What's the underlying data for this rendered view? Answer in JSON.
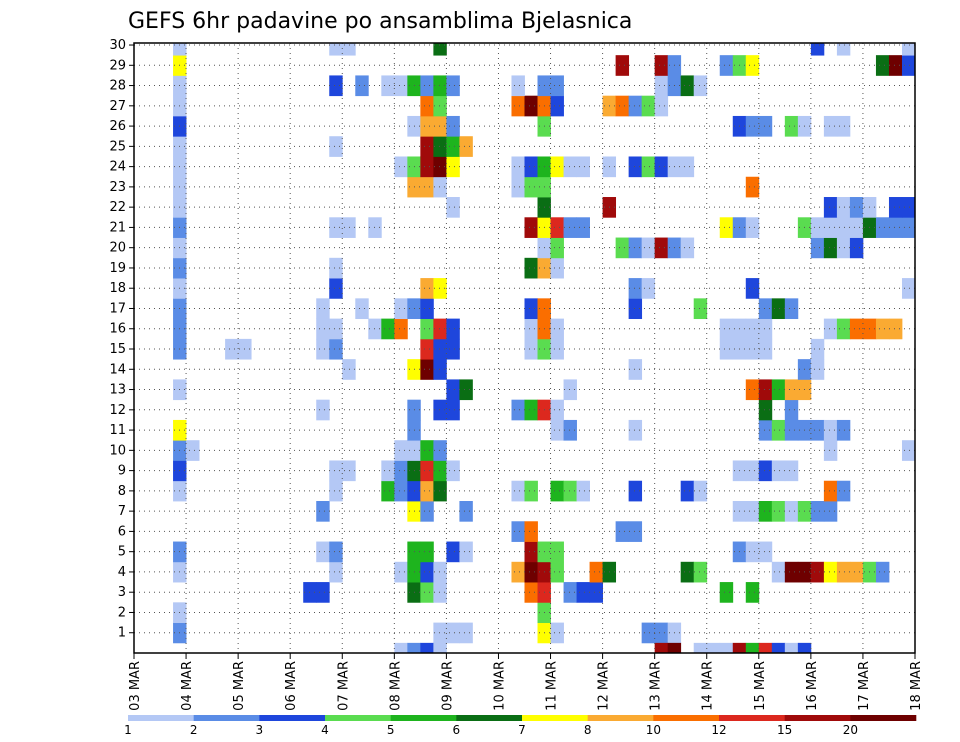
{
  "chart_data": {
    "type": "heatmap",
    "title": "GEFS 6hr padavine po ansamblima Bjelasnica",
    "x_tick_labels": [
      "03 MAR",
      "04 MAR",
      "05 MAR",
      "06 MAR",
      "07 MAR",
      "08 MAR",
      "09 MAR",
      "10 MAR",
      "11 MAR",
      "12 MAR",
      "13 MAR",
      "14 MAR",
      "15 MAR",
      "16 MAR",
      "17 MAR",
      "18 MAR"
    ],
    "y_tick_labels": [
      "1",
      "2",
      "3",
      "4",
      "5",
      "6",
      "7",
      "8",
      "9",
      "10",
      "11",
      "12",
      "13",
      "14",
      "15",
      "16",
      "17",
      "18",
      "19",
      "20",
      "21",
      "22",
      "23",
      "24",
      "25",
      "26",
      "27",
      "28",
      "29",
      "30"
    ],
    "y_range": [
      0,
      30
    ],
    "time_steps": 60,
    "grid": true,
    "colorbar": {
      "labels": [
        "1",
        "2",
        "3",
        "4",
        "5",
        "6",
        "7",
        "8",
        "10",
        "12",
        "15",
        "20"
      ],
      "colors": [
        "#b4c8f5",
        "#5a8ce6",
        "#1e46dc",
        "#5adc50",
        "#1eb41e",
        "#0a6e14",
        "#ffff00",
        "#faaa32",
        "#fa6e00",
        "#dc281e",
        "#a00a0a",
        "#6e0000"
      ]
    },
    "cells": [
      [
        1,
        3,
        2
      ],
      [
        1,
        23,
        1
      ],
      [
        1,
        24,
        1
      ],
      [
        1,
        25,
        1
      ],
      [
        1,
        31,
        7
      ],
      [
        1,
        32,
        1
      ],
      [
        1,
        39,
        2
      ],
      [
        1,
        40,
        2
      ],
      [
        1,
        41,
        1
      ],
      [
        2,
        3,
        1
      ],
      [
        2,
        31,
        4
      ],
      [
        3,
        13,
        3
      ],
      [
        3,
        14,
        3
      ],
      [
        3,
        21,
        6
      ],
      [
        3,
        22,
        4
      ],
      [
        3,
        23,
        1
      ],
      [
        3,
        30,
        9
      ],
      [
        3,
        31,
        10
      ],
      [
        3,
        33,
        2
      ],
      [
        3,
        34,
        3
      ],
      [
        3,
        35,
        3
      ],
      [
        3,
        45,
        5
      ],
      [
        3,
        47,
        5
      ],
      [
        4,
        3,
        1
      ],
      [
        4,
        15,
        1
      ],
      [
        4,
        20,
        1
      ],
      [
        4,
        21,
        5
      ],
      [
        4,
        22,
        3
      ],
      [
        4,
        23,
        1
      ],
      [
        4,
        29,
        8
      ],
      [
        4,
        30,
        12
      ],
      [
        4,
        31,
        11
      ],
      [
        4,
        32,
        4
      ],
      [
        4,
        35,
        9
      ],
      [
        4,
        36,
        6
      ],
      [
        4,
        42,
        6
      ],
      [
        4,
        43,
        4
      ],
      [
        4,
        49,
        1
      ],
      [
        4,
        50,
        12
      ],
      [
        4,
        51,
        12
      ],
      [
        4,
        52,
        11
      ],
      [
        4,
        53,
        7
      ],
      [
        4,
        54,
        8
      ],
      [
        4,
        55,
        8
      ],
      [
        4,
        56,
        4
      ],
      [
        4,
        57,
        2
      ],
      [
        5,
        3,
        2
      ],
      [
        5,
        14,
        1
      ],
      [
        5,
        15,
        2
      ],
      [
        5,
        21,
        5
      ],
      [
        5,
        22,
        5
      ],
      [
        5,
        24,
        3
      ],
      [
        5,
        25,
        1
      ],
      [
        5,
        30,
        11
      ],
      [
        5,
        31,
        4
      ],
      [
        5,
        32,
        4
      ],
      [
        5,
        46,
        2
      ],
      [
        5,
        47,
        1
      ],
      [
        5,
        48,
        1
      ],
      [
        6,
        29,
        2
      ],
      [
        6,
        30,
        9
      ],
      [
        6,
        37,
        2
      ],
      [
        6,
        38,
        2
      ],
      [
        7,
        14,
        2
      ],
      [
        7,
        21,
        7
      ],
      [
        7,
        22,
        2
      ],
      [
        7,
        25,
        2
      ],
      [
        7,
        46,
        1
      ],
      [
        7,
        47,
        1
      ],
      [
        7,
        48,
        5
      ],
      [
        7,
        49,
        4
      ],
      [
        7,
        50,
        1
      ],
      [
        7,
        51,
        4
      ],
      [
        7,
        52,
        2
      ],
      [
        7,
        53,
        2
      ],
      [
        8,
        3,
        1
      ],
      [
        8,
        15,
        1
      ],
      [
        8,
        19,
        5
      ],
      [
        8,
        20,
        2
      ],
      [
        8,
        21,
        3
      ],
      [
        8,
        22,
        8
      ],
      [
        8,
        23,
        6
      ],
      [
        8,
        29,
        1
      ],
      [
        8,
        30,
        4
      ],
      [
        8,
        32,
        5
      ],
      [
        8,
        33,
        4
      ],
      [
        8,
        34,
        1
      ],
      [
        8,
        38,
        3
      ],
      [
        8,
        42,
        3
      ],
      [
        8,
        43,
        1
      ],
      [
        8,
        53,
        9
      ],
      [
        8,
        54,
        2
      ],
      [
        9,
        3,
        3
      ],
      [
        9,
        15,
        1
      ],
      [
        9,
        16,
        1
      ],
      [
        9,
        19,
        1
      ],
      [
        9,
        20,
        2
      ],
      [
        9,
        21,
        6
      ],
      [
        9,
        22,
        10
      ],
      [
        9,
        23,
        5
      ],
      [
        9,
        24,
        1
      ],
      [
        9,
        46,
        1
      ],
      [
        9,
        47,
        1
      ],
      [
        9,
        48,
        3
      ],
      [
        9,
        49,
        1
      ],
      [
        9,
        50,
        1
      ],
      [
        10,
        3,
        2
      ],
      [
        10,
        4,
        1
      ],
      [
        10,
        20,
        1
      ],
      [
        10,
        21,
        1
      ],
      [
        10,
        22,
        5
      ],
      [
        10,
        23,
        2
      ],
      [
        10,
        53,
        1
      ],
      [
        10,
        59,
        1
      ],
      [
        11,
        3,
        7
      ],
      [
        11,
        21,
        2
      ],
      [
        11,
        32,
        1
      ],
      [
        11,
        33,
        2
      ],
      [
        11,
        38,
        1
      ],
      [
        11,
        48,
        2
      ],
      [
        11,
        49,
        4
      ],
      [
        11,
        50,
        2
      ],
      [
        11,
        51,
        2
      ],
      [
        11,
        52,
        2
      ],
      [
        11,
        53,
        1
      ],
      [
        11,
        54,
        2
      ],
      [
        12,
        14,
        1
      ],
      [
        12,
        21,
        2
      ],
      [
        12,
        23,
        3
      ],
      [
        12,
        24,
        3
      ],
      [
        12,
        29,
        2
      ],
      [
        12,
        30,
        5
      ],
      [
        12,
        31,
        10
      ],
      [
        12,
        32,
        1
      ],
      [
        12,
        48,
        6
      ],
      [
        12,
        50,
        2
      ],
      [
        13,
        3,
        1
      ],
      [
        13,
        24,
        3
      ],
      [
        13,
        25,
        6
      ],
      [
        13,
        33,
        1
      ],
      [
        13,
        47,
        9
      ],
      [
        13,
        48,
        11
      ],
      [
        13,
        49,
        5
      ],
      [
        13,
        50,
        8
      ],
      [
        13,
        51,
        8
      ],
      [
        14,
        16,
        1
      ],
      [
        14,
        21,
        7
      ],
      [
        14,
        22,
        12
      ],
      [
        14,
        23,
        3
      ],
      [
        14,
        38,
        1
      ],
      [
        14,
        51,
        2
      ],
      [
        14,
        52,
        1
      ],
      [
        15,
        3,
        2
      ],
      [
        15,
        7,
        1
      ],
      [
        15,
        8,
        1
      ],
      [
        15,
        14,
        1
      ],
      [
        15,
        15,
        2
      ],
      [
        15,
        22,
        10
      ],
      [
        15,
        23,
        3
      ],
      [
        15,
        24,
        3
      ],
      [
        15,
        30,
        1
      ],
      [
        15,
        31,
        4
      ],
      [
        15,
        32,
        1
      ],
      [
        15,
        45,
        1
      ],
      [
        15,
        46,
        1
      ],
      [
        15,
        47,
        1
      ],
      [
        15,
        48,
        1
      ],
      [
        15,
        52,
        1
      ],
      [
        16,
        3,
        2
      ],
      [
        16,
        14,
        1
      ],
      [
        16,
        15,
        1
      ],
      [
        16,
        18,
        1
      ],
      [
        16,
        19,
        5
      ],
      [
        16,
        20,
        9
      ],
      [
        16,
        22,
        4
      ],
      [
        16,
        23,
        10
      ],
      [
        16,
        24,
        3
      ],
      [
        16,
        30,
        1
      ],
      [
        16,
        31,
        9
      ],
      [
        16,
        32,
        1
      ],
      [
        16,
        45,
        1
      ],
      [
        16,
        46,
        1
      ],
      [
        16,
        47,
        1
      ],
      [
        16,
        48,
        1
      ],
      [
        16,
        53,
        1
      ],
      [
        16,
        54,
        4
      ],
      [
        16,
        55,
        9
      ],
      [
        16,
        56,
        9
      ],
      [
        16,
        57,
        8
      ],
      [
        16,
        58,
        8
      ],
      [
        17,
        3,
        2
      ],
      [
        17,
        14,
        1
      ],
      [
        17,
        17,
        1
      ],
      [
        17,
        20,
        1
      ],
      [
        17,
        21,
        2
      ],
      [
        17,
        22,
        3
      ],
      [
        17,
        30,
        3
      ],
      [
        17,
        31,
        9
      ],
      [
        17,
        38,
        3
      ],
      [
        17,
        43,
        4
      ],
      [
        17,
        48,
        2
      ],
      [
        17,
        49,
        6
      ],
      [
        17,
        50,
        2
      ],
      [
        18,
        3,
        1
      ],
      [
        18,
        15,
        3
      ],
      [
        18,
        22,
        8
      ],
      [
        18,
        23,
        7
      ],
      [
        18,
        38,
        2
      ],
      [
        18,
        39,
        1
      ],
      [
        18,
        47,
        3
      ],
      [
        18,
        59,
        1
      ],
      [
        19,
        3,
        2
      ],
      [
        19,
        15,
        1
      ],
      [
        19,
        30,
        6
      ],
      [
        19,
        31,
        8
      ],
      [
        19,
        32,
        1
      ],
      [
        20,
        3,
        1
      ],
      [
        20,
        31,
        1
      ],
      [
        20,
        32,
        4
      ],
      [
        20,
        37,
        4
      ],
      [
        20,
        38,
        2
      ],
      [
        20,
        39,
        1
      ],
      [
        20,
        40,
        11
      ],
      [
        20,
        41,
        2
      ],
      [
        20,
        42,
        1
      ],
      [
        20,
        52,
        2
      ],
      [
        20,
        53,
        6
      ],
      [
        20,
        54,
        1
      ],
      [
        20,
        55,
        3
      ],
      [
        21,
        3,
        2
      ],
      [
        21,
        15,
        1
      ],
      [
        21,
        16,
        1
      ],
      [
        21,
        18,
        1
      ],
      [
        21,
        30,
        11
      ],
      [
        21,
        31,
        7
      ],
      [
        21,
        32,
        10
      ],
      [
        21,
        33,
        2
      ],
      [
        21,
        34,
        2
      ],
      [
        21,
        45,
        7
      ],
      [
        21,
        46,
        2
      ],
      [
        21,
        47,
        1
      ],
      [
        21,
        51,
        4
      ],
      [
        21,
        52,
        1
      ],
      [
        21,
        53,
        1
      ],
      [
        21,
        54,
        1
      ],
      [
        21,
        55,
        1
      ],
      [
        21,
        56,
        6
      ],
      [
        21,
        57,
        2
      ],
      [
        21,
        58,
        2
      ],
      [
        21,
        59,
        2
      ],
      [
        22,
        3,
        1
      ],
      [
        22,
        24,
        1
      ],
      [
        22,
        31,
        6
      ],
      [
        22,
        36,
        11
      ],
      [
        22,
        53,
        3
      ],
      [
        22,
        54,
        1
      ],
      [
        22,
        55,
        2
      ],
      [
        22,
        56,
        1
      ],
      [
        22,
        58,
        3
      ],
      [
        22,
        59,
        3
      ],
      [
        23,
        3,
        1
      ],
      [
        23,
        21,
        8
      ],
      [
        23,
        22,
        8
      ],
      [
        23,
        23,
        1
      ],
      [
        23,
        29,
        1
      ],
      [
        23,
        30,
        4
      ],
      [
        23,
        31,
        4
      ],
      [
        23,
        47,
        9
      ],
      [
        24,
        3,
        1
      ],
      [
        24,
        20,
        1
      ],
      [
        24,
        21,
        4
      ],
      [
        24,
        22,
        11
      ],
      [
        24,
        23,
        12
      ],
      [
        24,
        24,
        7
      ],
      [
        24,
        29,
        1
      ],
      [
        24,
        30,
        3
      ],
      [
        24,
        31,
        5
      ],
      [
        24,
        32,
        7
      ],
      [
        24,
        33,
        1
      ],
      [
        24,
        34,
        1
      ],
      [
        24,
        36,
        1
      ],
      [
        24,
        38,
        3
      ],
      [
        24,
        39,
        4
      ],
      [
        24,
        40,
        3
      ],
      [
        24,
        41,
        1
      ],
      [
        24,
        42,
        1
      ],
      [
        25,
        3,
        1
      ],
      [
        25,
        15,
        1
      ],
      [
        25,
        22,
        11
      ],
      [
        25,
        23,
        6
      ],
      [
        25,
        24,
        5
      ],
      [
        25,
        25,
        8
      ],
      [
        26,
        3,
        3
      ],
      [
        26,
        21,
        1
      ],
      [
        26,
        22,
        8
      ],
      [
        26,
        23,
        8
      ],
      [
        26,
        24,
        2
      ],
      [
        26,
        31,
        4
      ],
      [
        26,
        46,
        3
      ],
      [
        26,
        47,
        2
      ],
      [
        26,
        48,
        2
      ],
      [
        26,
        50,
        4
      ],
      [
        26,
        51,
        1
      ],
      [
        26,
        53,
        1
      ],
      [
        26,
        54,
        1
      ],
      [
        27,
        3,
        1
      ],
      [
        27,
        22,
        9
      ],
      [
        27,
        23,
        4
      ],
      [
        27,
        29,
        9
      ],
      [
        27,
        30,
        12
      ],
      [
        27,
        31,
        9
      ],
      [
        27,
        32,
        3
      ],
      [
        27,
        36,
        8
      ],
      [
        27,
        37,
        9
      ],
      [
        27,
        38,
        2
      ],
      [
        27,
        39,
        4
      ],
      [
        27,
        40,
        1
      ],
      [
        28,
        3,
        1
      ],
      [
        28,
        15,
        3
      ],
      [
        28,
        17,
        2
      ],
      [
        28,
        19,
        1
      ],
      [
        28,
        20,
        1
      ],
      [
        28,
        21,
        5
      ],
      [
        28,
        22,
        2
      ],
      [
        28,
        23,
        5
      ],
      [
        28,
        24,
        2
      ],
      [
        28,
        29,
        1
      ],
      [
        28,
        31,
        2
      ],
      [
        28,
        32,
        2
      ],
      [
        28,
        40,
        1
      ],
      [
        28,
        41,
        2
      ],
      [
        28,
        42,
        6
      ],
      [
        28,
        43,
        1
      ],
      [
        29,
        3,
        7
      ],
      [
        29,
        37,
        11
      ],
      [
        29,
        40,
        11
      ],
      [
        29,
        41,
        2
      ],
      [
        29,
        45,
        2
      ],
      [
        29,
        46,
        4
      ],
      [
        29,
        47,
        7
      ],
      [
        29,
        57,
        6
      ],
      [
        29,
        58,
        12
      ],
      [
        29,
        59,
        3
      ],
      [
        30,
        3,
        1
      ],
      [
        30,
        15,
        1
      ],
      [
        30,
        16,
        1
      ],
      [
        30,
        23,
        6
      ],
      [
        30,
        52,
        3
      ],
      [
        30,
        54,
        1
      ],
      [
        30,
        59,
        1
      ],
      [
        0,
        20,
        1
      ],
      [
        0,
        21,
        2
      ],
      [
        0,
        22,
        3
      ],
      [
        0,
        23,
        1
      ],
      [
        0,
        40,
        11
      ],
      [
        0,
        41,
        12
      ],
      [
        0,
        43,
        1
      ],
      [
        0,
        44,
        1
      ],
      [
        0,
        45,
        1
      ],
      [
        0,
        46,
        11
      ],
      [
        0,
        47,
        5
      ],
      [
        0,
        48,
        10
      ],
      [
        0,
        49,
        3
      ],
      [
        0,
        50,
        1
      ],
      [
        0,
        51,
        3
      ]
    ]
  }
}
